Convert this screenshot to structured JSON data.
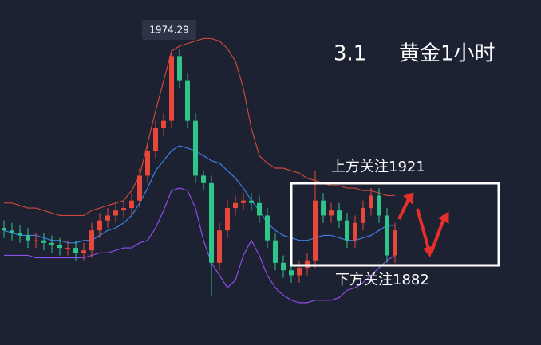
{
  "chart_data": {
    "type": "candlestick",
    "title": "黄金1小时",
    "subtitle": "3.1",
    "annotations": [
      "上方关注1921",
      "下方关注1882"
    ],
    "ylim": [
      1856,
      1994.5
    ],
    "up_color": "#e8473b",
    "down_color": "#2fc48a",
    "open": [
      1903,
      1902,
      1901,
      1900,
      1898,
      1898,
      1897,
      1896,
      1895,
      1895,
      1893,
      1894,
      1902,
      1906,
      1908,
      1910,
      1911,
      1914,
      1924,
      1934,
      1943,
      1946,
      1972,
      1962,
      1946,
      1924,
      1921,
      1889,
      1902,
      1911,
      1913,
      1914,
      1913,
      1908,
      1898,
      1889,
      1886,
      1884,
      1887,
      1890,
      1914,
      1908,
      1910,
      1906,
      1898,
      1905,
      1911,
      1916,
      1908,
      1892
    ],
    "high": [
      1906,
      1905,
      1904,
      1903,
      1901,
      1901,
      1900,
      1899,
      1898,
      1898,
      1897,
      1905,
      1909,
      1911,
      1913,
      1914,
      1917,
      1927,
      1937,
      1946,
      1949,
      1974.29,
      1975,
      1965,
      1949,
      1926,
      1924,
      1905,
      1914,
      1916,
      1917,
      1917,
      1916,
      1911,
      1901,
      1892,
      1889,
      1890,
      1893,
      1926,
      1917,
      1913,
      1913,
      1909,
      1908,
      1914,
      1919,
      1919,
      1911,
      1905
    ],
    "low": [
      1899,
      1898,
      1897,
      1895,
      1895,
      1894,
      1893,
      1892,
      1892,
      1890,
      1890,
      1891,
      1899,
      1903,
      1905,
      1907,
      1908,
      1911,
      1921,
      1931,
      1940,
      1943,
      1959,
      1943,
      1921,
      1918,
      1876,
      1886,
      1899,
      1908,
      1910,
      1910,
      1905,
      1895,
      1886,
      1883,
      1881,
      1881,
      1884,
      1887,
      1905,
      1905,
      1903,
      1895,
      1895,
      1902,
      1908,
      1905,
      1889,
      1889
    ],
    "close": [
      1902,
      1901,
      1900,
      1898,
      1898,
      1897,
      1896,
      1895,
      1895,
      1893,
      1894,
      1902,
      1906,
      1908,
      1910,
      1911,
      1914,
      1924,
      1934,
      1943,
      1946,
      1972,
      1962,
      1946,
      1924,
      1921,
      1889,
      1902,
      1911,
      1913,
      1914,
      1913,
      1908,
      1898,
      1889,
      1886,
      1884,
      1887,
      1890,
      1914,
      1908,
      1910,
      1906,
      1898,
      1905,
      1911,
      1916,
      1908,
      1892,
      1902
    ],
    "series": [
      {
        "color": "#c9483c",
        "values": [
          1913,
          1913,
          1912,
          1911,
          1911,
          1910,
          1909,
          1908,
          1908,
          1908,
          1908,
          1910,
          1911,
          1912,
          1913,
          1914,
          1918,
          1924,
          1937,
          1950,
          1962,
          1974,
          1976,
          1977,
          1978,
          1979,
          1979,
          1978,
          1975,
          1970,
          1959,
          1943,
          1932,
          1929,
          1927,
          1927,
          1926,
          1925,
          1923,
          1922,
          1921,
          1920,
          1920,
          1919,
          1919,
          1918,
          1918,
          1917,
          1916,
          1916
        ]
      },
      {
        "color": "#3d7fe6",
        "values": [
          1902,
          1901,
          1900,
          1900,
          1900,
          1899,
          1898,
          1898,
          1897,
          1897,
          1898,
          1898,
          1900,
          1902,
          1903,
          1905,
          1908,
          1913,
          1919,
          1926,
          1930,
          1934,
          1936,
          1935,
          1934,
          1932,
          1930,
          1929,
          1926,
          1923,
          1919,
          1914,
          1910,
          1905,
          1902,
          1900,
          1899,
          1898,
          1898,
          1899,
          1900,
          1900,
          1899,
          1898,
          1898,
          1899,
          1900,
          1902,
          1904,
          1904
        ]
      },
      {
        "color": "#8d4de8",
        "values": [
          1892,
          1892,
          1892,
          1892,
          1891,
          1891,
          1891,
          1891,
          1891,
          1891,
          1891,
          1892,
          1893,
          1893,
          1894,
          1895,
          1895,
          1897,
          1898,
          1903,
          1910,
          1918,
          1919,
          1918,
          1911,
          1898,
          1889,
          1884,
          1879,
          1882,
          1892,
          1898,
          1892,
          1884,
          1879,
          1876,
          1874,
          1873,
          1873,
          1874,
          1874,
          1874,
          1875,
          1878,
          1879,
          1881,
          1884,
          1887,
          1890,
          1892
        ]
      }
    ]
  }
}
